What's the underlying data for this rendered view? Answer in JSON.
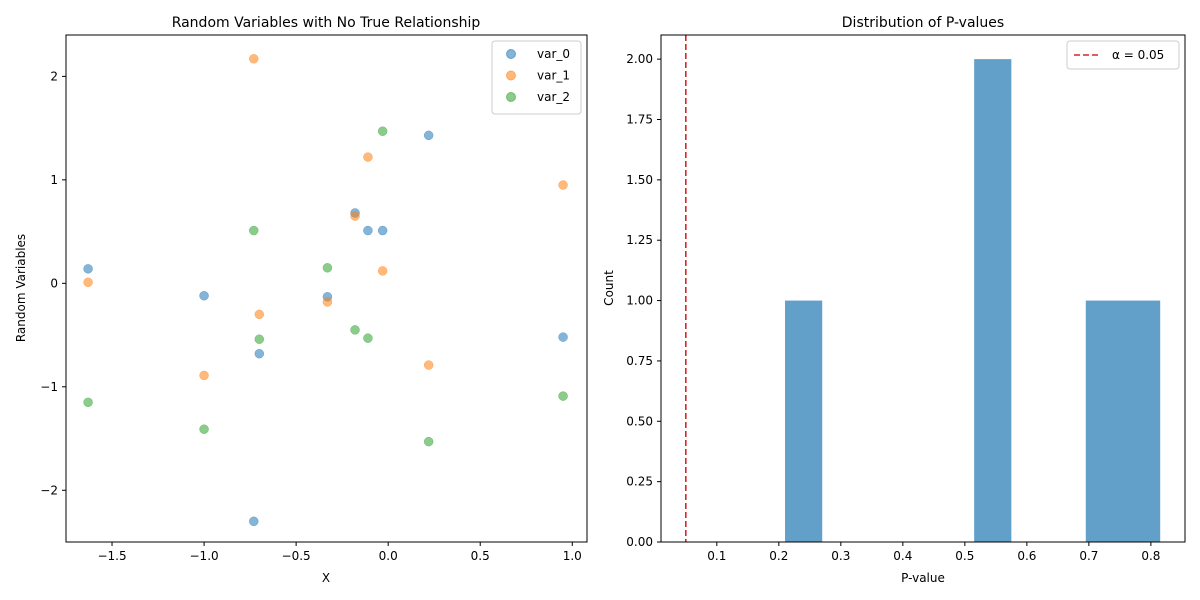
{
  "chart_data": [
    {
      "type": "scatter",
      "title": "Random Variables with No True Relationship",
      "xlabel": "X",
      "ylabel": "Random Variables",
      "xlim": [
        -1.75,
        1.08
      ],
      "ylim": [
        -2.5,
        2.4
      ],
      "xticks": [
        -1.5,
        -1.0,
        -0.5,
        0.0,
        0.5,
        1.0
      ],
      "xtick_labels": [
        "−1.5",
        "−1.0",
        "−0.5",
        "0.0",
        "0.5",
        "1.0"
      ],
      "yticks": [
        -2,
        -1,
        0,
        1,
        2
      ],
      "ytick_labels": [
        "−2",
        "−1",
        "0",
        "1",
        "2"
      ],
      "grid": false,
      "legend": "top-right",
      "x": [
        -1.63,
        -1.0,
        -0.73,
        -0.7,
        -0.33,
        -0.18,
        -0.11,
        -0.03,
        0.22,
        0.95
      ],
      "series": [
        {
          "name": "var_0",
          "color": "#1f77b4",
          "values": [
            0.14,
            -0.12,
            -2.3,
            -0.68,
            -0.13,
            0.68,
            0.51,
            0.51,
            1.43,
            -0.52
          ]
        },
        {
          "name": "var_1",
          "color": "#ff7f0e",
          "values": [
            0.01,
            -0.89,
            2.17,
            -0.3,
            -0.18,
            0.65,
            1.22,
            0.12,
            -0.79,
            0.95
          ]
        },
        {
          "name": "var_2",
          "color": "#2ca02c",
          "values": [
            -1.15,
            -1.41,
            0.51,
            -0.54,
            0.15,
            -0.45,
            -0.53,
            1.47,
            -1.53,
            -1.09
          ]
        }
      ]
    },
    {
      "type": "bar",
      "title": "Distribution of P-values",
      "xlabel": "P-value",
      "ylabel": "Count",
      "xlim": [
        0.01,
        0.855
      ],
      "ylim": [
        0,
        2.1
      ],
      "xticks": [
        0.1,
        0.2,
        0.3,
        0.4,
        0.5,
        0.6,
        0.7,
        0.8
      ],
      "xtick_labels": [
        "0.1",
        "0.2",
        "0.3",
        "0.4",
        "0.5",
        "0.6",
        "0.7",
        "0.8"
      ],
      "yticks": [
        0,
        0.25,
        0.5,
        0.75,
        1.0,
        1.25,
        1.5,
        1.75,
        2.0
      ],
      "ytick_labels": [
        "0.00",
        "0.25",
        "0.50",
        "0.75",
        "1.00",
        "1.25",
        "1.50",
        "1.75",
        "2.00"
      ],
      "grid": false,
      "legend": "top-right",
      "bar_color": "#1f77b4",
      "bins": [
        {
          "x0": 0.21,
          "x1": 0.27,
          "count": 1
        },
        {
          "x0": 0.515,
          "x1": 0.575,
          "count": 2
        },
        {
          "x0": 0.695,
          "x1": 0.755,
          "count": 1
        },
        {
          "x0": 0.755,
          "x1": 0.815,
          "count": 1
        }
      ],
      "vline": {
        "x": 0.05,
        "color": "#d62728",
        "label": "α = 0.05"
      }
    }
  ]
}
